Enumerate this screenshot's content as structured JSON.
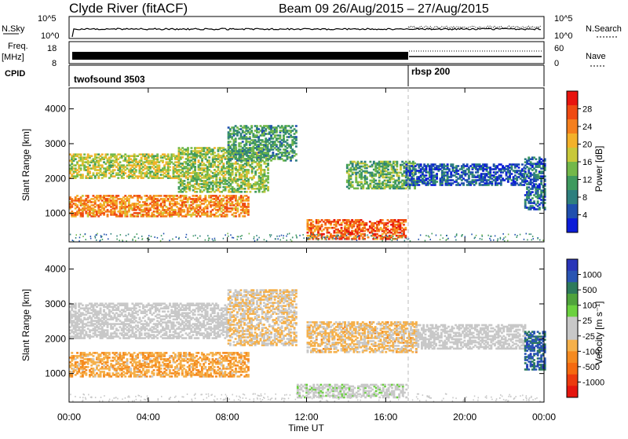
{
  "header": {
    "title": "Clyde River (fitACF)",
    "beam": "Beam 09 26/Aug/2015 – 27/Aug/2015"
  },
  "top_panels": {
    "nsky_label": "N.Sky",
    "nsky_ticks": [
      "10^5",
      "10^0"
    ],
    "nsearch_label": "N.Search",
    "nsearch_ticks": [
      "10^5",
      "10^0"
    ],
    "freq_label": "Freq.",
    "freq_unit": "[MHz]",
    "freq_ticks": [
      "18",
      "8"
    ],
    "nave_label": "Nave",
    "nave_ticks": [
      "60",
      "0"
    ],
    "cpid_label": "CPID",
    "cpid_segments": [
      {
        "name": "twofsound 3503",
        "start_hour": 0,
        "end_hour": 17
      },
      {
        "name": "rbsp 200",
        "start_hour": 17,
        "end_hour": 24
      }
    ]
  },
  "colorbars": {
    "power": {
      "label": "Power [dB]",
      "ticks": [
        "28",
        "24",
        "20",
        "16",
        "12",
        "8",
        "4"
      ],
      "colors": [
        "#0b1cd8",
        "#1f4fae",
        "#2e7f7e",
        "#3f9a5f",
        "#73b84a",
        "#c8c83a",
        "#f3b12a",
        "#f57f1d",
        "#ef4a12",
        "#e8140e"
      ]
    },
    "velocity": {
      "label": "Velocity [m s⁻¹]",
      "ticks": [
        "1000",
        "500",
        "100",
        "25",
        "-25",
        "-100",
        "-500",
        "-1000"
      ],
      "colors": [
        "#2a35b8",
        "#2a55b3",
        "#2d7a5c",
        "#4fa33c",
        "#6bd13f",
        "#c8c8c8",
        "#c8c8c8",
        "#f5b04a",
        "#f58a1f",
        "#f56a10",
        "#ec3a0e",
        "#e5150e"
      ]
    }
  },
  "chart_data": [
    {
      "type": "heatmap",
      "title": "Power",
      "xlabel": "Time UT",
      "ylabel": "Slant Range [km]",
      "x_ticks": [
        "00:00",
        "04:00",
        "08:00",
        "12:00",
        "16:00",
        "20:00",
        "00:00"
      ],
      "y_ticks": [
        1000,
        2000,
        3000,
        4000
      ],
      "xlim_hours": [
        0,
        24
      ],
      "ylim_km": [
        180,
        4600
      ],
      "zlim_db": [
        0,
        30
      ],
      "bands": [
        {
          "t0": 0.0,
          "t1": 9.0,
          "r0": 900,
          "r1": 1500,
          "value": 22
        },
        {
          "t0": 0.0,
          "t1": 5.5,
          "r0": 2000,
          "r1": 2700,
          "value": 16
        },
        {
          "t0": 5.5,
          "t1": 10.0,
          "r0": 1600,
          "r1": 2900,
          "value": 14
        },
        {
          "t0": 8.0,
          "t1": 11.5,
          "r0": 2500,
          "r1": 3500,
          "value": 10
        },
        {
          "t0": 12.0,
          "t1": 17.0,
          "r0": 250,
          "r1": 800,
          "value": 24
        },
        {
          "t0": 14.0,
          "t1": 17.5,
          "r0": 1700,
          "r1": 2500,
          "value": 12
        },
        {
          "t0": 17.0,
          "t1": 23.0,
          "r0": 1800,
          "r1": 2400,
          "value": 5
        },
        {
          "t0": 23.0,
          "t1": 24.0,
          "r0": 1100,
          "r1": 2600,
          "value": 6
        }
      ]
    },
    {
      "type": "heatmap",
      "title": "Velocity",
      "xlabel": "Time UT",
      "ylabel": "Slant Range [km]",
      "x_ticks": [
        "00:00",
        "04:00",
        "08:00",
        "12:00",
        "16:00",
        "20:00",
        "00:00"
      ],
      "y_ticks": [
        1000,
        2000,
        3000,
        4000
      ],
      "xlim_hours": [
        0,
        24
      ],
      "ylim_km": [
        180,
        4600
      ],
      "zlim_ms": [
        -1000,
        1000
      ],
      "bands": [
        {
          "t0": 0.0,
          "t1": 9.0,
          "r0": 900,
          "r1": 1600,
          "value": -300
        },
        {
          "t0": 0.0,
          "t1": 8.0,
          "r0": 2000,
          "r1": 3000,
          "value": 0
        },
        {
          "t0": 8.0,
          "t1": 11.5,
          "r0": 1800,
          "r1": 3400,
          "value": -150
        },
        {
          "t0": 11.5,
          "t1": 17.0,
          "r0": 300,
          "r1": 700,
          "value": 60
        },
        {
          "t0": 12.0,
          "t1": 17.5,
          "r0": 1600,
          "r1": 2500,
          "value": -200
        },
        {
          "t0": 17.5,
          "t1": 23.0,
          "r0": 1700,
          "r1": 2400,
          "value": 0
        },
        {
          "t0": 23.0,
          "t1": 24.0,
          "r0": 1100,
          "r1": 2200,
          "value": 700
        }
      ]
    }
  ]
}
